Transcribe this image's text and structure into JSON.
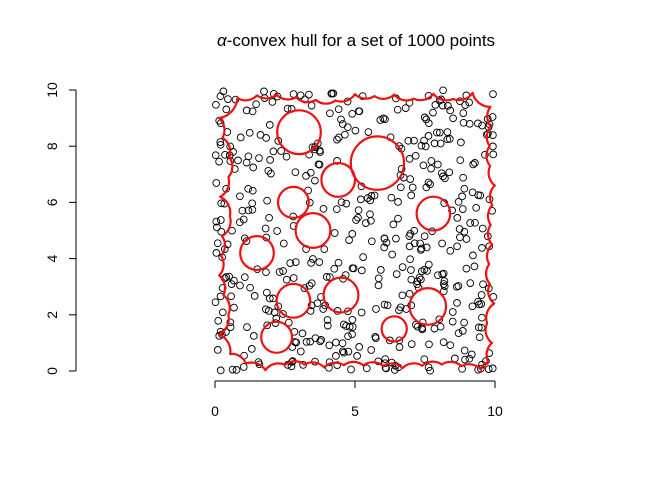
{
  "chart_data": {
    "type": "scatter",
    "title_prefix": "α",
    "title_rest": "-convex hull for a set of 1000 points",
    "xlabel": "",
    "ylabel": "",
    "xlim": [
      0,
      10
    ],
    "ylim": [
      0,
      10
    ],
    "x_ticks": [
      0,
      5,
      10
    ],
    "y_ticks": [
      0,
      2,
      4,
      6,
      8,
      10
    ],
    "x_tick_labels": [
      "0",
      "5",
      "10"
    ],
    "y_tick_labels": [
      "0",
      "2",
      "4",
      "6",
      "8",
      "10"
    ],
    "grid": false,
    "legend": "none",
    "n_points": 1000,
    "point_color": "#000000",
    "hull_color": "#ee1111",
    "hull_holes": [
      {
        "cx": 3.0,
        "cy": 8.5,
        "r": 0.78
      },
      {
        "cx": 5.8,
        "cy": 7.4,
        "r": 0.95
      },
      {
        "cx": 4.4,
        "cy": 6.8,
        "r": 0.6
      },
      {
        "cx": 2.8,
        "cy": 6.0,
        "r": 0.55
      },
      {
        "cx": 3.5,
        "cy": 5.0,
        "r": 0.62
      },
      {
        "cx": 7.8,
        "cy": 5.6,
        "r": 0.6
      },
      {
        "cx": 1.5,
        "cy": 4.2,
        "r": 0.6
      },
      {
        "cx": 2.8,
        "cy": 2.5,
        "r": 0.6
      },
      {
        "cx": 4.5,
        "cy": 2.7,
        "r": 0.62
      },
      {
        "cx": 2.2,
        "cy": 1.2,
        "r": 0.55
      },
      {
        "cx": 7.6,
        "cy": 2.3,
        "r": 0.65
      },
      {
        "cx": 6.4,
        "cy": 1.5,
        "r": 0.45
      }
    ],
    "sample_seed": 1000
  }
}
